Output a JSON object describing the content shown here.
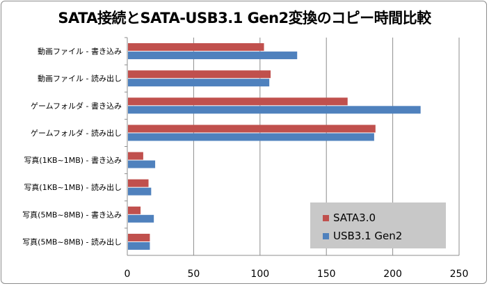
{
  "chart_data": {
    "type": "bar",
    "orientation": "horizontal",
    "title": "SATA接続とSATA-USB3.1 Gen2変換のコピー時間比較",
    "categories": [
      "動画ファイル - 書き込み",
      "動画ファイル - 読み出し",
      "ゲームフォルダ - 書き込み",
      "ゲームフォルダ - 読み出し",
      "写真(1KB~1MB) - 書き込み",
      "写真(1KB~1MB) - 読み出し",
      "写真(5MB~8MB) - 書き込み",
      "写真(5MB~8MB) - 読み出し"
    ],
    "series": [
      {
        "name": "SATA3.0",
        "color": "#c0504d",
        "values": [
          103,
          108,
          166,
          187,
          12,
          16,
          10,
          17
        ]
      },
      {
        "name": "USB3.1 Gen2",
        "color": "#4f81bd",
        "values": [
          128,
          107,
          221,
          186,
          21,
          18,
          20,
          17
        ]
      }
    ],
    "xlim": [
      0,
      250
    ],
    "xticks": [
      "0",
      "50",
      "100",
      "150",
      "200",
      "250"
    ],
    "grid": true,
    "legend_position": "bottom-right"
  }
}
